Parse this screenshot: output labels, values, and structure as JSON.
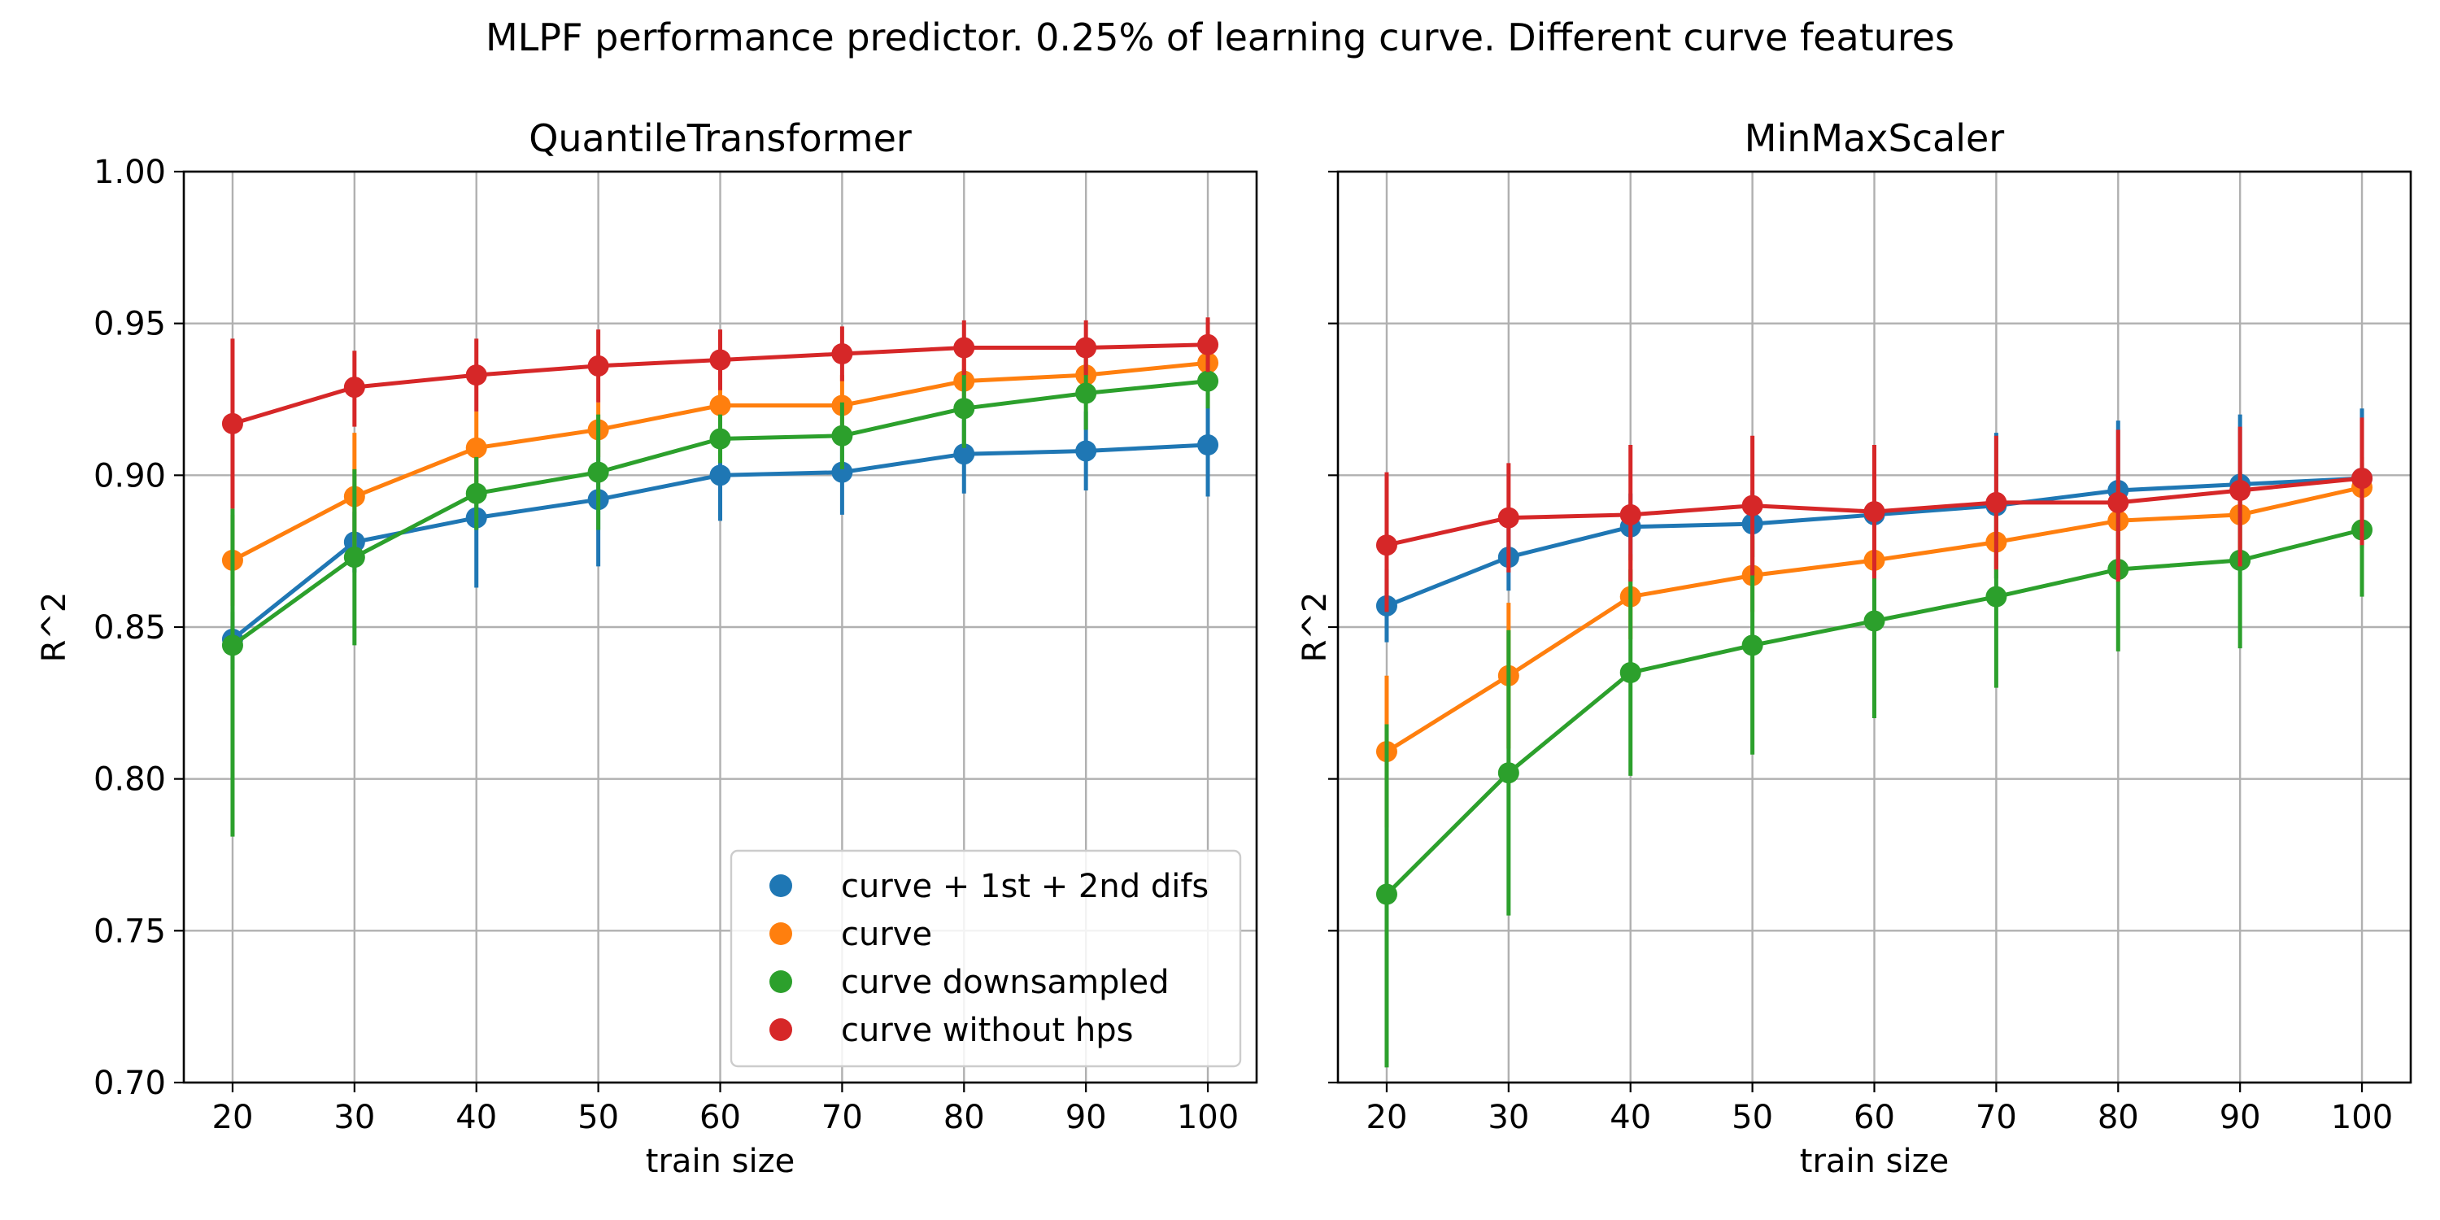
{
  "figure": {
    "suptitle": "MLPF performance predictor. 0.25% of learning curve. Different curve features"
  },
  "colors": {
    "curve + 1st + 2nd difs": "#1f77b4",
    "curve": "#ff7f0e",
    "curve downsampled": "#2ca02c",
    "curve without hps": "#d62728",
    "grid": "#b0b0b0"
  },
  "chart_data": [
    {
      "type": "line",
      "title": "QuantileTransformer",
      "xlabel": "train size",
      "ylabel": "R^2",
      "x": [
        20,
        30,
        40,
        50,
        60,
        70,
        80,
        90,
        100
      ],
      "xticks": [
        "20",
        "30",
        "40",
        "50",
        "60",
        "70",
        "80",
        "90",
        "100"
      ],
      "ylim": [
        0.7,
        1.0
      ],
      "yticks": [
        "0.70",
        "0.75",
        "0.80",
        "0.85",
        "0.90",
        "0.95",
        "1.00"
      ],
      "grid": true,
      "legend": {
        "location": "lower right",
        "entries": [
          "curve + 1st + 2nd difs",
          "curve",
          "curve downsampled",
          "curve without hps"
        ]
      },
      "series": [
        {
          "name": "curve + 1st + 2nd difs",
          "values": [
            0.846,
            0.878,
            0.886,
            0.892,
            0.9,
            0.901,
            0.907,
            0.908,
            0.91
          ],
          "err_low": [
            0.836,
            0.868,
            0.863,
            0.87,
            0.885,
            0.887,
            0.894,
            0.895,
            0.893
          ],
          "err_high": [
            0.855,
            0.888,
            0.908,
            0.913,
            0.915,
            0.915,
            0.92,
            0.921,
            0.927
          ]
        },
        {
          "name": "curve",
          "values": [
            0.872,
            0.893,
            0.909,
            0.915,
            0.923,
            0.923,
            0.931,
            0.933,
            0.937
          ],
          "err_low": [
            0.857,
            0.872,
            0.897,
            0.906,
            0.913,
            0.913,
            0.923,
            0.925,
            0.931
          ],
          "err_high": [
            0.887,
            0.914,
            0.921,
            0.924,
            0.933,
            0.933,
            0.939,
            0.941,
            0.943
          ]
        },
        {
          "name": "curve downsampled",
          "values": [
            0.844,
            0.873,
            0.894,
            0.901,
            0.912,
            0.913,
            0.922,
            0.927,
            0.931
          ],
          "err_low": [
            0.781,
            0.844,
            0.882,
            0.882,
            0.904,
            0.902,
            0.909,
            0.915,
            0.922
          ],
          "err_high": [
            0.889,
            0.902,
            0.906,
            0.92,
            0.92,
            0.924,
            0.935,
            0.939,
            0.94
          ]
        },
        {
          "name": "curve without hps",
          "values": [
            0.917,
            0.929,
            0.933,
            0.936,
            0.938,
            0.94,
            0.942,
            0.942,
            0.943
          ],
          "err_low": [
            0.889,
            0.916,
            0.921,
            0.924,
            0.928,
            0.931,
            0.933,
            0.933,
            0.934
          ],
          "err_high": [
            0.945,
            0.941,
            0.945,
            0.948,
            0.948,
            0.949,
            0.951,
            0.951,
            0.952
          ]
        }
      ]
    },
    {
      "type": "line",
      "title": "MinMaxScaler",
      "xlabel": "train size",
      "ylabel": "R^2",
      "x": [
        20,
        30,
        40,
        50,
        60,
        70,
        80,
        90,
        100
      ],
      "xticks": [
        "20",
        "30",
        "40",
        "50",
        "60",
        "70",
        "80",
        "90",
        "100"
      ],
      "ylim": [
        0.7,
        1.0
      ],
      "sharey": true,
      "grid": true,
      "series": [
        {
          "name": "curve + 1st + 2nd difs",
          "values": [
            0.857,
            0.873,
            0.883,
            0.884,
            0.887,
            0.89,
            0.895,
            0.897,
            0.899
          ],
          "err_low": [
            0.845,
            0.862,
            0.872,
            0.873,
            0.876,
            0.866,
            0.872,
            0.874,
            0.876
          ],
          "err_high": [
            0.869,
            0.884,
            0.894,
            0.895,
            0.898,
            0.914,
            0.918,
            0.92,
            0.922
          ]
        },
        {
          "name": "curve",
          "values": [
            0.809,
            0.834,
            0.86,
            0.867,
            0.872,
            0.878,
            0.885,
            0.887,
            0.896
          ],
          "err_low": [
            0.784,
            0.81,
            0.846,
            0.855,
            0.86,
            0.866,
            0.874,
            0.876,
            0.886
          ],
          "err_high": [
            0.834,
            0.858,
            0.874,
            0.879,
            0.884,
            0.89,
            0.896,
            0.898,
            0.906
          ]
        },
        {
          "name": "curve downsampled",
          "values": [
            0.762,
            0.802,
            0.835,
            0.844,
            0.852,
            0.86,
            0.869,
            0.872,
            0.882
          ],
          "err_low": [
            0.705,
            0.755,
            0.801,
            0.808,
            0.82,
            0.83,
            0.842,
            0.843,
            0.86
          ],
          "err_high": [
            0.818,
            0.849,
            0.869,
            0.88,
            0.884,
            0.89,
            0.896,
            0.901,
            0.904
          ]
        },
        {
          "name": "curve without hps",
          "values": [
            0.877,
            0.886,
            0.887,
            0.89,
            0.888,
            0.891,
            0.891,
            0.895,
            0.899
          ],
          "err_low": [
            0.855,
            0.868,
            0.865,
            0.867,
            0.866,
            0.869,
            0.865,
            0.87,
            0.877
          ],
          "err_high": [
            0.901,
            0.904,
            0.91,
            0.913,
            0.91,
            0.913,
            0.915,
            0.916,
            0.919
          ]
        }
      ]
    }
  ]
}
